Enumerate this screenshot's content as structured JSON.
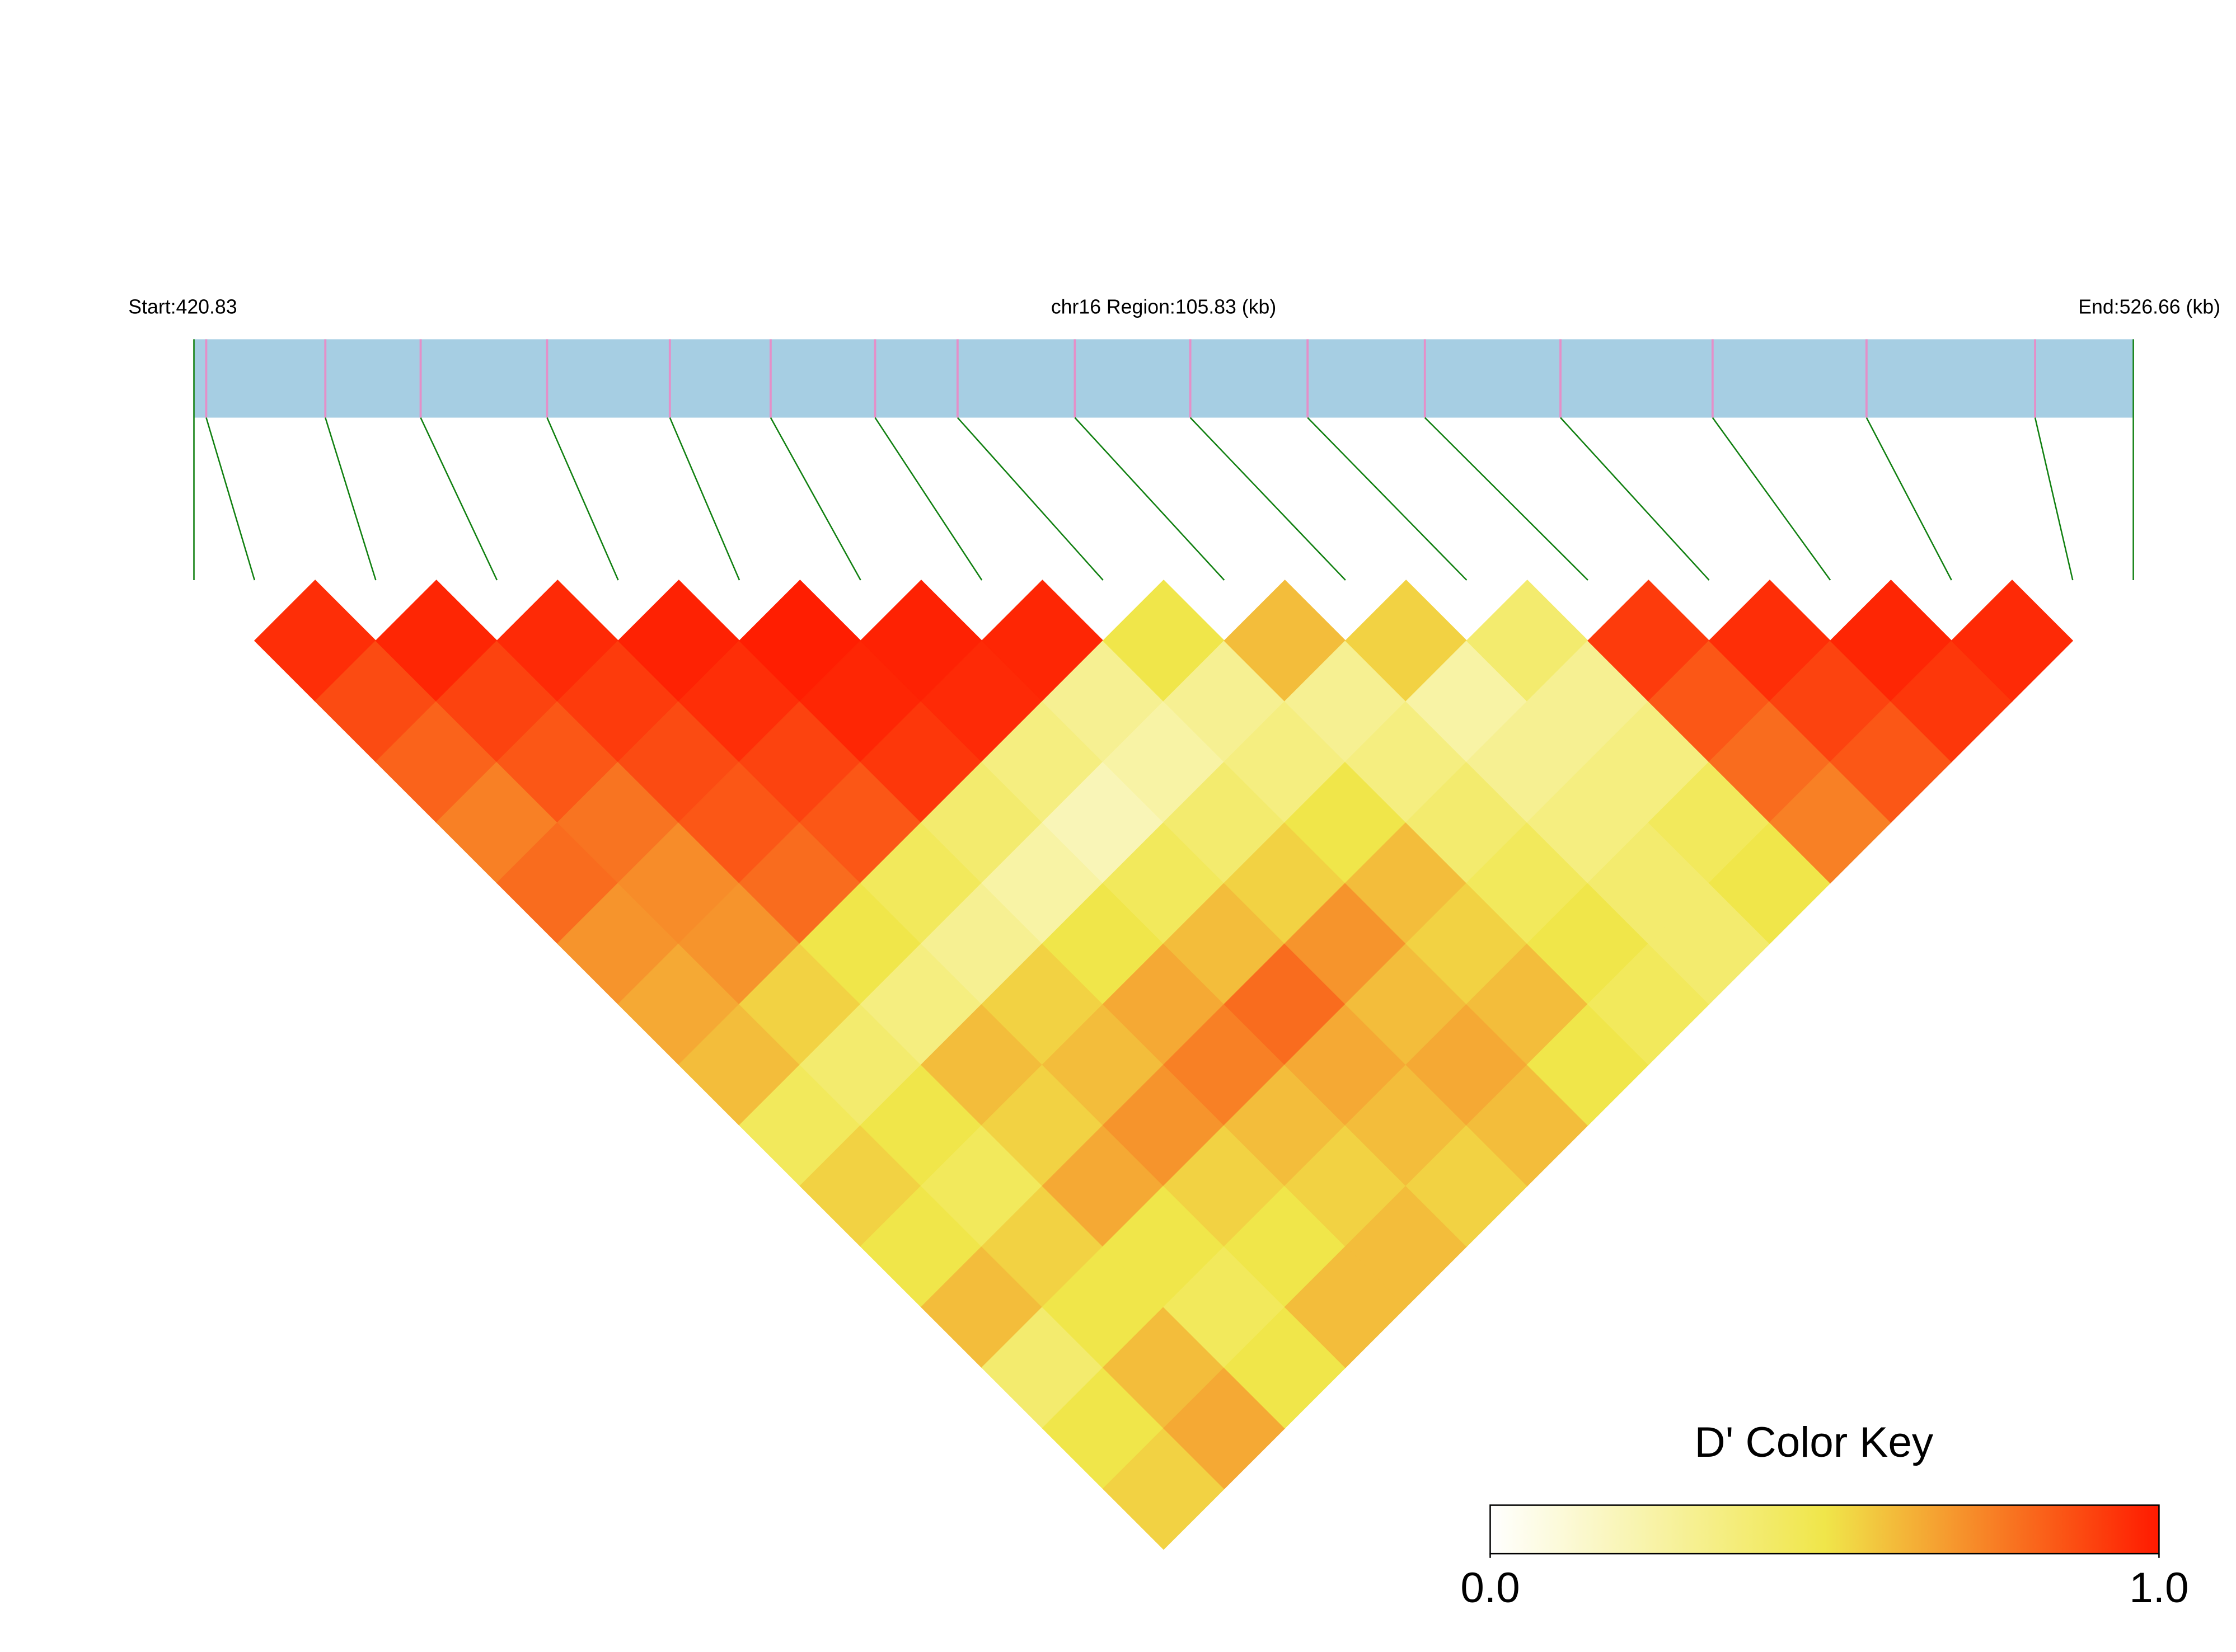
{
  "chart_data": {
    "type": "ld-heatmap",
    "start_label": "Start:420.83",
    "region_label": "chr16 Region:105.83 (kb)",
    "end_label": "End:526.66 (kb)",
    "xlim": [
      420.83,
      526.66
    ],
    "positions": [
      421.5,
      428.0,
      433.2,
      440.1,
      446.8,
      452.3,
      458.0,
      462.5,
      468.9,
      475.2,
      481.6,
      488.0,
      495.4,
      503.7,
      512.1,
      521.3
    ],
    "values": [
      [
        0.95,
        0.88,
        0.82,
        0.75,
        0.8,
        0.7,
        0.65,
        0.6,
        0.45,
        0.55,
        0.5,
        0.6,
        0.4,
        0.5,
        0.55
      ],
      [
        0.97,
        0.9,
        0.85,
        0.78,
        0.72,
        0.7,
        0.55,
        0.4,
        0.5,
        0.45,
        0.55,
        0.5,
        0.6,
        0.65
      ],
      [
        0.96,
        0.92,
        0.88,
        0.85,
        0.8,
        0.5,
        0.35,
        0.6,
        0.55,
        0.65,
        0.5,
        0.45,
        0.5
      ],
      [
        0.98,
        0.95,
        0.9,
        0.85,
        0.45,
        0.3,
        0.55,
        0.6,
        0.7,
        0.55,
        0.5,
        0.6
      ],
      [
        0.99,
        0.97,
        0.93,
        0.4,
        0.25,
        0.5,
        0.65,
        0.75,
        0.6,
        0.55,
        0.6
      ],
      [
        0.98,
        0.96,
        0.35,
        0.2,
        0.45,
        0.6,
        0.8,
        0.65,
        0.6,
        0.55
      ],
      [
        0.97,
        0.3,
        0.25,
        0.4,
        0.55,
        0.7,
        0.6,
        0.65,
        0.6
      ],
      [
        0.5,
        0.3,
        0.35,
        0.5,
        0.6,
        0.55,
        0.6,
        0.5
      ],
      [
        0.6,
        0.3,
        0.35,
        0.4,
        0.45,
        0.5,
        0.45
      ],
      [
        0.55,
        0.25,
        0.3,
        0.35,
        0.4,
        0.4
      ],
      [
        0.4,
        0.3,
        0.35,
        0.45,
        0.5
      ],
      [
        0.92,
        0.85,
        0.8,
        0.75
      ],
      [
        0.95,
        0.9,
        0.85
      ],
      [
        0.97,
        0.93
      ],
      [
        0.96
      ]
    ],
    "key_title": "D' Color Key",
    "clim": [
      0,
      1
    ],
    "key_ticks": [
      {
        "value": 0,
        "label": "0.0"
      },
      {
        "value": 1,
        "label": "1.0"
      }
    ],
    "colors": [
      "#ffffff",
      "#f0e64a",
      "#ff1a00"
    ],
    "bar_color": "#a6cee3",
    "snp_color": "#e58fc8",
    "link_color": "#118011"
  }
}
